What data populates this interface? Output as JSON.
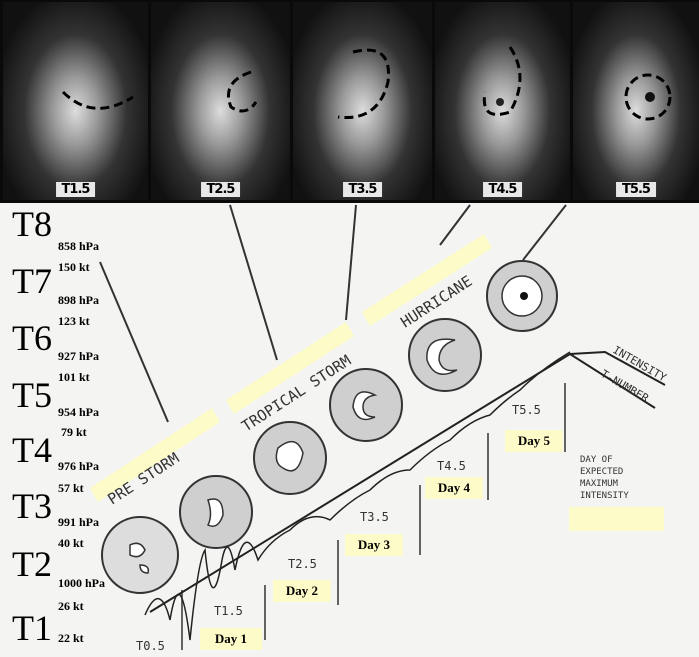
{
  "satellite_labels": [
    "T1.5",
    "T2.5",
    "T3.5",
    "T4.5",
    "T5.5"
  ],
  "scale": [
    {
      "t": "T8",
      "hpa": "858 hPa",
      "kt": "150 kt"
    },
    {
      "t": "T7",
      "hpa": "898 hPa",
      "kt": "123 kt"
    },
    {
      "t": "T6",
      "hpa": "927 hPa",
      "kt": "101 kt"
    },
    {
      "t": "T5",
      "hpa": "954 hPa",
      "kt": "79 kt"
    },
    {
      "t": "T4",
      "hpa": "976 hPa",
      "kt": "57 kt"
    },
    {
      "t": "T3",
      "hpa": "991 hPa",
      "kt": "40 kt"
    },
    {
      "t": "T2",
      "hpa": "1000 hPa",
      "kt": "26 kt"
    },
    {
      "t": "T1",
      "hpa": "",
      "kt": "22 kt"
    }
  ],
  "stages": [
    "PRE STORM",
    "TROPICAL STORM",
    "HURRICANE"
  ],
  "t_numbers": [
    "T0.5",
    "T1.5",
    "T2.5",
    "T3.5",
    "T4.5",
    "T5.5"
  ],
  "days": [
    "Day 1",
    "Day 2",
    "Day 3",
    "Day 4",
    "Day 5"
  ],
  "curve_labels": {
    "intensity": "INTENSITY",
    "tnumber": "T-NUMBER"
  },
  "note": [
    "DAY OF",
    "EXPECTED",
    "MAXIMUM",
    "INTENSITY"
  ],
  "colors": {
    "highlight": "#fdfbc8"
  }
}
